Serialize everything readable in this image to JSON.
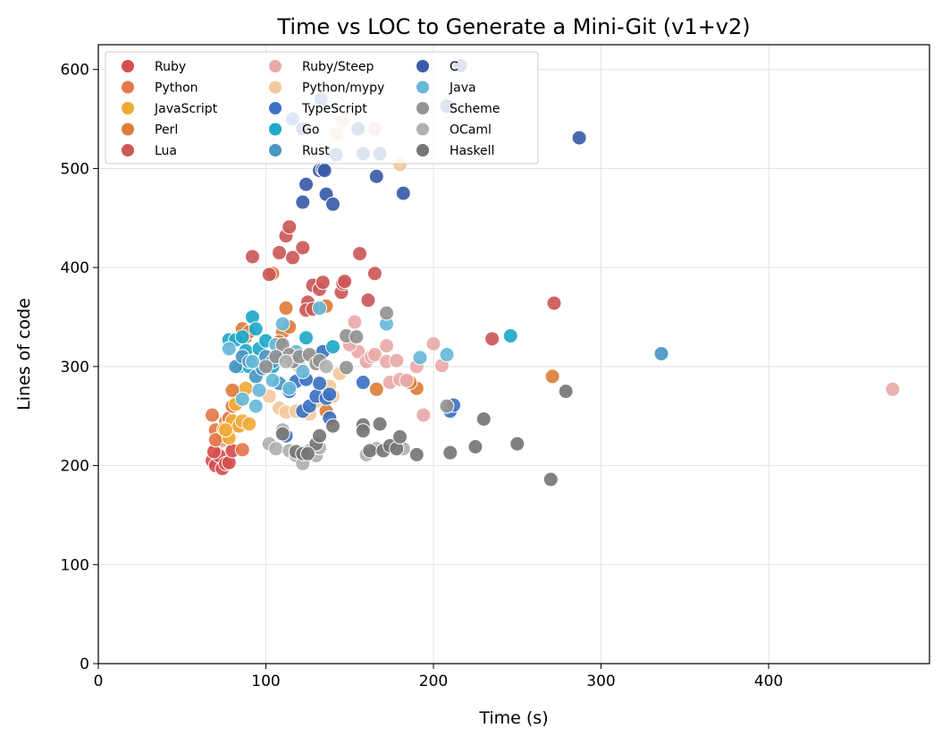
{
  "chart_data": {
    "type": "scatter",
    "title": "Time vs LOC to Generate a Mini-Git (v1+v2)",
    "xlabel": "Time (s)",
    "ylabel": "Lines of code",
    "xlim": [
      0,
      496
    ],
    "ylim": [
      0,
      625
    ],
    "xticks": [
      0,
      100,
      200,
      300,
      400
    ],
    "yticks": [
      0,
      100,
      200,
      300,
      400,
      500,
      600
    ],
    "grid": true,
    "legend_placement": "top-left",
    "legend_columns": 3,
    "series": [
      {
        "name": "Ruby",
        "color": "#d64f4f",
        "points": [
          [
            68,
            205
          ],
          [
            70,
            200
          ],
          [
            72,
            210
          ],
          [
            74,
            197
          ],
          [
            76,
            202
          ],
          [
            78,
            203
          ],
          [
            80,
            215
          ],
          [
            73,
            225
          ],
          [
            69,
            214
          ]
        ]
      },
      {
        "name": "Python",
        "color": "#e5784a",
        "points": [
          [
            68,
            251
          ],
          [
            70,
            236
          ],
          [
            72,
            226
          ],
          [
            74,
            230
          ],
          [
            76,
            244
          ],
          [
            78,
            248
          ],
          [
            80,
            260
          ],
          [
            82,
            240
          ],
          [
            86,
            216
          ],
          [
            70,
            226
          ]
        ]
      },
      {
        "name": "JavaScript",
        "color": "#efab38",
        "points": [
          [
            75,
            237
          ],
          [
            78,
            228
          ],
          [
            80,
            245
          ],
          [
            82,
            262
          ],
          [
            84,
            240
          ],
          [
            86,
            245
          ],
          [
            88,
            278
          ],
          [
            90,
            242
          ],
          [
            76,
            236
          ]
        ]
      },
      {
        "name": "Perl",
        "color": "#dd7d3a",
        "points": [
          [
            80,
            276
          ],
          [
            86,
            338
          ],
          [
            88,
            330
          ],
          [
            90,
            335
          ],
          [
            104,
            394
          ],
          [
            112,
            359
          ],
          [
            110,
            335
          ],
          [
            108,
            325
          ],
          [
            114,
            340
          ],
          [
            136,
            361
          ],
          [
            136,
            255
          ],
          [
            166,
            277
          ],
          [
            190,
            278
          ],
          [
            186,
            284
          ],
          [
            271,
            290
          ],
          [
            120,
            300
          ]
        ]
      },
      {
        "name": "Lua",
        "color": "#cc5858",
        "points": [
          [
            92,
            411
          ],
          [
            108,
            415
          ],
          [
            112,
            432
          ],
          [
            114,
            441
          ],
          [
            116,
            410
          ],
          [
            122,
            420
          ],
          [
            102,
            393
          ],
          [
            128,
            382
          ],
          [
            132,
            378
          ],
          [
            134,
            385
          ],
          [
            125,
            365
          ],
          [
            124,
            357
          ],
          [
            128,
            358
          ],
          [
            145,
            375
          ],
          [
            146,
            384
          ],
          [
            147,
            386
          ],
          [
            156,
            414
          ],
          [
            161,
            367
          ],
          [
            165,
            394
          ],
          [
            235,
            328
          ],
          [
            272,
            364
          ]
        ]
      },
      {
        "name": "Ruby/Steep",
        "color": "#e9a9a9",
        "points": [
          [
            153,
            345
          ],
          [
            155,
            315
          ],
          [
            160,
            305
          ],
          [
            163,
            310
          ],
          [
            165,
            312
          ],
          [
            172,
            321
          ],
          [
            172,
            305
          ],
          [
            178,
            306
          ],
          [
            174,
            284
          ],
          [
            180,
            287
          ],
          [
            184,
            286
          ],
          [
            190,
            300
          ],
          [
            194,
            251
          ],
          [
            200,
            323
          ],
          [
            205,
            301
          ],
          [
            165,
            540
          ],
          [
            474,
            277
          ],
          [
            150,
            322
          ]
        ]
      },
      {
        "name": "Python/mypy",
        "color": "#f4c89b",
        "points": [
          [
            142,
            535
          ],
          [
            146,
            548
          ],
          [
            180,
            504
          ],
          [
            102,
            270
          ],
          [
            108,
            258
          ],
          [
            112,
            254
          ],
          [
            118,
            255
          ],
          [
            126,
            252
          ],
          [
            130,
            265
          ],
          [
            138,
            280
          ],
          [
            140,
            270
          ],
          [
            144,
            293
          ],
          [
            120,
            300
          ],
          [
            128,
            310
          ]
        ]
      },
      {
        "name": "TypeScript",
        "color": "#3d72c2",
        "points": [
          [
            112,
            230
          ],
          [
            118,
            285
          ],
          [
            114,
            275
          ],
          [
            122,
            255
          ],
          [
            126,
            260
          ],
          [
            130,
            270
          ],
          [
            132,
            283
          ],
          [
            134,
            315
          ],
          [
            136,
            268
          ],
          [
            138,
            272
          ],
          [
            138,
            248
          ],
          [
            158,
            284
          ],
          [
            210,
            255
          ],
          [
            212,
            261
          ],
          [
            124,
            287
          ],
          [
            133,
            570
          ],
          [
            116,
            550
          ]
        ]
      },
      {
        "name": "Go",
        "color": "#1fa8c9",
        "points": [
          [
            78,
            327
          ],
          [
            82,
            327
          ],
          [
            84,
            300
          ],
          [
            86,
            330
          ],
          [
            88,
            316
          ],
          [
            90,
            300
          ],
          [
            92,
            350
          ],
          [
            94,
            338
          ],
          [
            96,
            318
          ],
          [
            100,
            326
          ],
          [
            104,
            300
          ],
          [
            108,
            310
          ],
          [
            124,
            329
          ],
          [
            140,
            320
          ],
          [
            246,
            331
          ]
        ]
      },
      {
        "name": "Rust",
        "color": "#4a96c2",
        "points": [
          [
            82,
            300
          ],
          [
            86,
            310
          ],
          [
            90,
            305
          ],
          [
            94,
            290
          ],
          [
            98,
            298
          ],
          [
            100,
            310
          ],
          [
            104,
            305
          ],
          [
            108,
            283
          ],
          [
            336,
            313
          ]
        ]
      },
      {
        "name": "C",
        "color": "#3b5ba8",
        "points": [
          [
            124,
            484
          ],
          [
            122,
            466
          ],
          [
            132,
            498
          ],
          [
            134,
            499
          ],
          [
            136,
            474
          ],
          [
            140,
            464
          ],
          [
            166,
            492
          ],
          [
            182,
            475
          ],
          [
            287,
            531
          ],
          [
            135,
            498
          ],
          [
            216,
            604
          ],
          [
            208,
            563
          ],
          [
            122,
            540
          ],
          [
            155,
            540
          ],
          [
            158,
            515
          ],
          [
            168,
            515
          ],
          [
            142,
            514
          ]
        ]
      },
      {
        "name": "Java",
        "color": "#66b9d8",
        "points": [
          [
            78,
            318
          ],
          [
            86,
            267
          ],
          [
            92,
            305
          ],
          [
            94,
            260
          ],
          [
            96,
            276
          ],
          [
            104,
            286
          ],
          [
            106,
            322
          ],
          [
            110,
            343
          ],
          [
            114,
            278
          ],
          [
            118,
            315
          ],
          [
            132,
            359
          ],
          [
            172,
            343
          ],
          [
            192,
            309
          ],
          [
            208,
            312
          ],
          [
            122,
            295
          ]
        ]
      },
      {
        "name": "Scheme",
        "color": "#939393",
        "points": [
          [
            110,
            322
          ],
          [
            114,
            312
          ],
          [
            116,
            305
          ],
          [
            100,
            300
          ],
          [
            106,
            310
          ],
          [
            120,
            310
          ],
          [
            126,
            312
          ],
          [
            130,
            303
          ],
          [
            132,
            306
          ],
          [
            148,
            331
          ],
          [
            154,
            330
          ],
          [
            148,
            299
          ],
          [
            172,
            354
          ],
          [
            208,
            260
          ]
        ]
      },
      {
        "name": "OCaml",
        "color": "#b0b0b0",
        "points": [
          [
            102,
            222
          ],
          [
            106,
            217
          ],
          [
            110,
            236
          ],
          [
            114,
            215
          ],
          [
            118,
            210
          ],
          [
            122,
            202
          ],
          [
            126,
            215
          ],
          [
            130,
            210
          ],
          [
            132,
            218
          ],
          [
            160,
            211
          ],
          [
            166,
            217
          ],
          [
            182,
            217
          ],
          [
            136,
            300
          ],
          [
            112,
            305
          ]
        ]
      },
      {
        "name": "Haskell",
        "color": "#767676",
        "points": [
          [
            110,
            232
          ],
          [
            118,
            214
          ],
          [
            122,
            212
          ],
          [
            130,
            222
          ],
          [
            132,
            230
          ],
          [
            140,
            240
          ],
          [
            158,
            241
          ],
          [
            158,
            235
          ],
          [
            168,
            242
          ],
          [
            162,
            215
          ],
          [
            170,
            215
          ],
          [
            174,
            220
          ],
          [
            178,
            217
          ],
          [
            180,
            229
          ],
          [
            190,
            211
          ],
          [
            210,
            213
          ],
          [
            225,
            219
          ],
          [
            230,
            247
          ],
          [
            250,
            222
          ],
          [
            270,
            186
          ],
          [
            279,
            275
          ],
          [
            125,
            212
          ]
        ]
      }
    ]
  }
}
